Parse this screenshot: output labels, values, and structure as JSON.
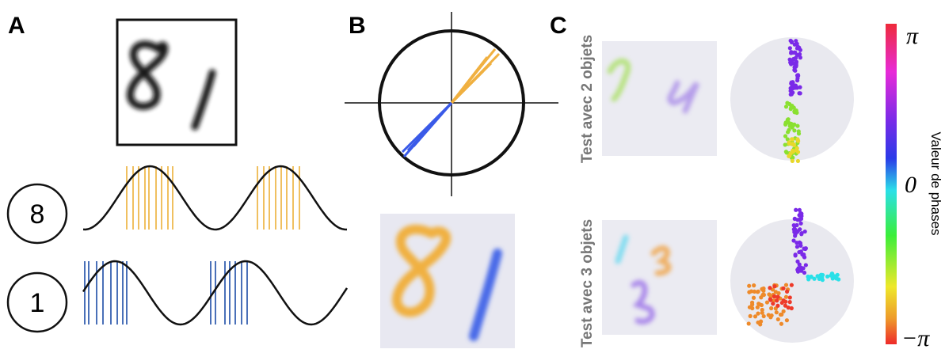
{
  "panels": [
    {
      "label": "A",
      "digits": [
        "8",
        "1"
      ]
    },
    {
      "label": "B"
    },
    {
      "label": "C",
      "rows": [
        "Test avec 2 objets",
        "Test avec 3 objets"
      ],
      "colorbar": {
        "title": "Valeur de phases",
        "ticks": [
          "π",
          "0",
          "−π"
        ]
      }
    }
  ]
}
